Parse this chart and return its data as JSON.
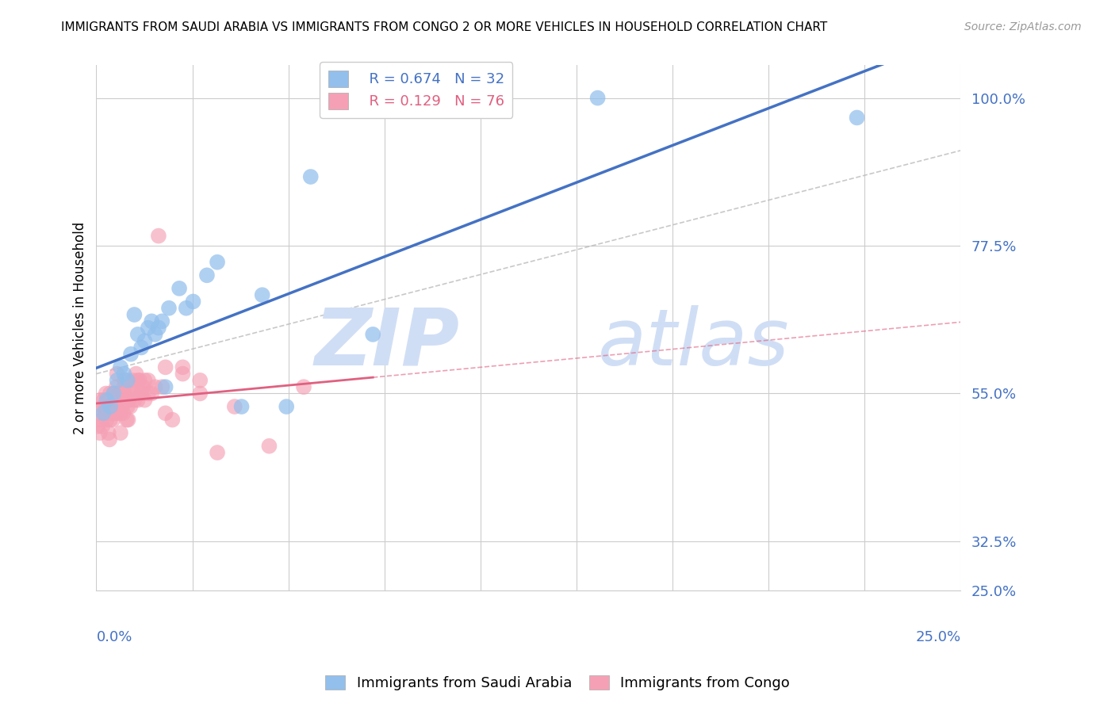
{
  "title": "IMMIGRANTS FROM SAUDI ARABIA VS IMMIGRANTS FROM CONGO 2 OR MORE VEHICLES IN HOUSEHOLD CORRELATION CHART",
  "source": "Source: ZipAtlas.com",
  "ylabel_label": "2 or more Vehicles in Household",
  "ytick_vals": [
    25.0,
    32.5,
    55.0,
    77.5,
    100.0
  ],
  "xmin": 0.0,
  "xmax": 25.0,
  "ymin": 25.0,
  "ymax": 105.0,
  "legend_R_saudi": "R = 0.674",
  "legend_N_saudi": "N = 32",
  "legend_R_congo": "R = 0.129",
  "legend_N_congo": "N = 76",
  "legend_label_saudi": "Immigrants from Saudi Arabia",
  "legend_label_congo": "Immigrants from Congo",
  "color_saudi": "#92BFEC",
  "color_congo": "#F5A0B5",
  "trend_color_saudi": "#4472C4",
  "trend_color_congo": "#E06080",
  "watermark_color": "#D0DEF5",
  "saudi_x": [
    0.2,
    0.3,
    0.4,
    0.5,
    0.6,
    0.7,
    0.8,
    0.9,
    1.0,
    1.1,
    1.2,
    1.3,
    1.5,
    1.7,
    1.9,
    2.1,
    2.4,
    2.8,
    3.2,
    4.2,
    4.8,
    6.2,
    1.4,
    1.6,
    1.8,
    2.0,
    2.6,
    3.5,
    5.5,
    8.0,
    14.5,
    22.0
  ],
  "saudi_y": [
    52,
    54,
    53,
    55,
    57,
    59,
    58,
    57,
    61,
    67,
    64,
    62,
    65,
    64,
    66,
    68,
    71,
    69,
    73,
    53,
    70,
    88,
    63,
    66,
    65,
    56,
    68,
    75,
    53,
    64,
    100,
    97
  ],
  "congo_x": [
    0.05,
    0.07,
    0.1,
    0.12,
    0.15,
    0.18,
    0.2,
    0.22,
    0.25,
    0.28,
    0.3,
    0.32,
    0.35,
    0.38,
    0.4,
    0.42,
    0.45,
    0.48,
    0.5,
    0.52,
    0.55,
    0.58,
    0.6,
    0.62,
    0.65,
    0.68,
    0.7,
    0.72,
    0.75,
    0.78,
    0.8,
    0.82,
    0.85,
    0.88,
    0.9,
    0.92,
    0.95,
    0.98,
    1.0,
    1.05,
    1.1,
    1.15,
    1.2,
    1.25,
    1.3,
    1.35,
    1.4,
    1.5,
    1.6,
    1.7,
    1.8,
    1.9,
    2.0,
    2.2,
    2.5,
    3.0,
    3.5,
    4.0,
    5.0,
    6.0,
    0.3,
    0.4,
    0.5,
    0.6,
    0.7,
    0.8,
    0.9,
    1.0,
    1.1,
    1.2,
    1.3,
    1.4,
    1.5,
    2.0,
    2.5,
    3.0
  ],
  "congo_y": [
    50,
    52,
    49,
    54,
    51,
    50,
    53,
    54,
    52,
    55,
    51,
    53,
    49,
    48,
    51,
    54,
    52,
    51,
    53,
    55,
    54,
    56,
    52,
    55,
    53,
    54,
    49,
    54,
    53,
    52,
    55,
    57,
    54,
    51,
    53,
    51,
    54,
    53,
    55,
    57,
    54,
    58,
    54,
    57,
    55,
    56,
    54,
    57,
    55,
    56,
    79,
    56,
    59,
    51,
    59,
    57,
    46,
    53,
    47,
    56,
    53,
    55,
    52,
    58,
    52,
    56,
    54,
    56,
    55,
    57,
    55,
    57,
    55,
    52,
    58,
    55
  ],
  "ref_line_color": "#BBBBBB"
}
